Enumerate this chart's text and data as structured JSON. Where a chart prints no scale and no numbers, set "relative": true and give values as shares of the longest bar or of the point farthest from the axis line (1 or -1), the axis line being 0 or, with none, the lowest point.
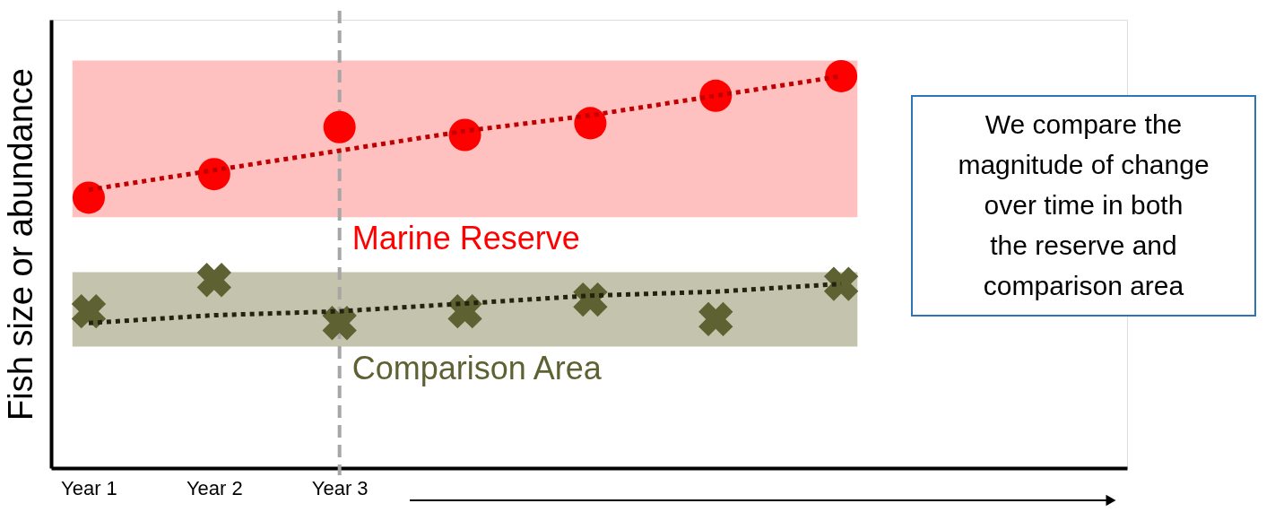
{
  "chart_data": {
    "type": "scatter",
    "relative": true,
    "ylabel": "Fish size or abundance",
    "categories": [
      "Year 1",
      "Year 2",
      "Year 3",
      null,
      null,
      null,
      null
    ],
    "grid": false,
    "series": [
      {
        "marker": "circle",
        "color": "#ff0000",
        "values": [
          0.69,
          0.75,
          0.87,
          0.85,
          0.88,
          0.95,
          1.0
        ]
      },
      {
        "marker": "cross",
        "color": "#5e6132",
        "values": [
          0.4,
          0.48,
          0.37,
          0.4,
          0.43,
          0.38,
          0.47
        ]
      },
      {
        "type": "line",
        "line_style": "dotted",
        "color": "#c00000",
        "values": [
          0.71,
          0.76,
          0.81,
          0.86,
          0.9,
          0.95,
          1.0
        ]
      },
      {
        "type": "line",
        "line_style": "dotted",
        "color": "#23240f",
        "values": [
          0.37,
          0.39,
          0.4,
          0.42,
          0.44,
          0.45,
          0.47
        ]
      }
    ],
    "bands": [
      {
        "axis": "y",
        "from": 0.64,
        "to": 1.04,
        "label": "Marine Reserve",
        "color": "#ffc0c0"
      },
      {
        "axis": "y",
        "from": 0.31,
        "to": 0.5,
        "label": "Comparison Area",
        "color": "#c4c3ad"
      }
    ],
    "ref_lines": [
      {
        "axis": "x",
        "value": "Year 3",
        "color": "#a6a6a6",
        "line_style": "dashed"
      }
    ],
    "annotations": [
      "We compare the magnitude of change over time in both the reserve and comparison area"
    ]
  }
}
